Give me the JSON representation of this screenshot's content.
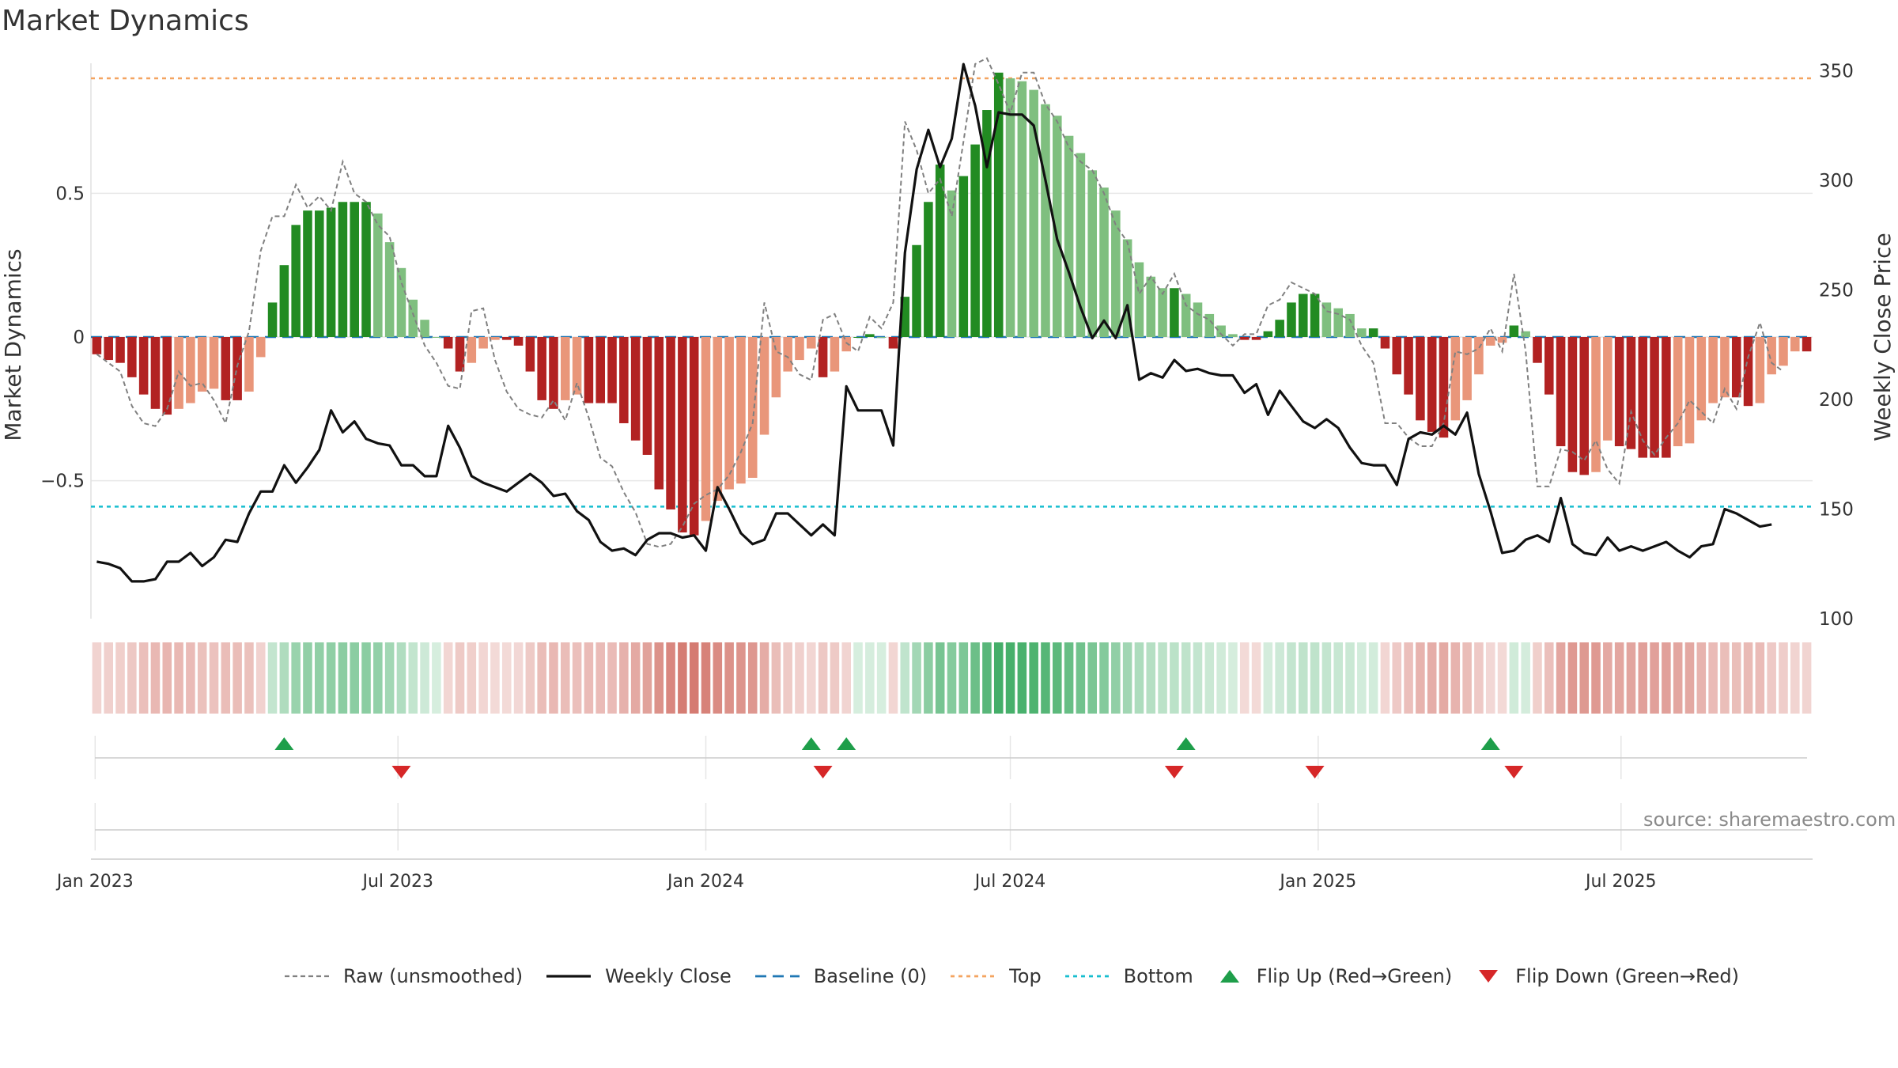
{
  "title": "Market Dynamics",
  "source": "source: sharemaestro.com",
  "colors": {
    "green_strong": "#228b22",
    "green_light": "#7fbf7f",
    "red_strong": "#b22222",
    "red_light": "#e9967a",
    "close": "#111111",
    "raw": "#808080",
    "baseline": "#1f77b4",
    "top": "#f4a460",
    "bottom": "#17becf",
    "flip_up": "#1e9e4a",
    "flip_down": "#d62728"
  },
  "legend": [
    {
      "key": "raw",
      "label": "Raw (unsmoothed)"
    },
    {
      "key": "close",
      "label": "Weekly Close"
    },
    {
      "key": "baseline",
      "label": "Baseline (0)"
    },
    {
      "key": "top",
      "label": "Top"
    },
    {
      "key": "bottom",
      "label": "Bottom"
    },
    {
      "key": "flip_up",
      "label": "Flip Up (Red→Green)"
    },
    {
      "key": "flip_down",
      "label": "Flip Down (Green→Red)"
    }
  ],
  "chart_data": {
    "type": "bar",
    "title": "Market Dynamics",
    "ylabel": "Market Dynamics",
    "ylabel_right": "Weekly Close Price",
    "x_start": "2023-01-02",
    "x_interval": "weekly",
    "x_ticks": [
      "Jan 2023",
      "Jul 2023",
      "Jan 2024",
      "Jul 2024",
      "Jan 2025",
      "Jul 2025"
    ],
    "x_tick_dates": [
      "2023-01-01",
      "2023-07-01",
      "2024-01-01",
      "2024-07-01",
      "2025-01-01",
      "2025-07-01"
    ],
    "y_ticks": [
      -0.5,
      0,
      0.5
    ],
    "y_tick_labels": [
      "−0.5",
      "0",
      "0.5"
    ],
    "ylim": [
      -0.98,
      0.98
    ],
    "y2_ticks": [
      100,
      150,
      200,
      250,
      300,
      350
    ],
    "y2lim": [
      100,
      357
    ],
    "top_line": 0.9,
    "bottom_line": -0.59,
    "baseline": 0,
    "grid": true,
    "legend_position": "bottom",
    "series": [
      {
        "name": "Market Dynamics",
        "values": [
          -0.06,
          -0.08,
          -0.09,
          -0.14,
          -0.2,
          -0.25,
          -0.27,
          -0.25,
          -0.23,
          -0.19,
          -0.18,
          -0.22,
          -0.22,
          -0.19,
          -0.07,
          0.12,
          0.25,
          0.39,
          0.44,
          0.44,
          0.45,
          0.47,
          0.47,
          0.47,
          0.43,
          0.33,
          0.24,
          0.13,
          0.06,
          0,
          -0.04,
          -0.12,
          -0.09,
          -0.04,
          -0.01,
          -0.01,
          -0.03,
          -0.12,
          -0.22,
          -0.25,
          -0.22,
          -0.2,
          -0.23,
          -0.23,
          -0.23,
          -0.3,
          -0.36,
          -0.41,
          -0.53,
          -0.6,
          -0.68,
          -0.69,
          -0.64,
          -0.57,
          -0.53,
          -0.51,
          -0.49,
          -0.34,
          -0.21,
          -0.12,
          -0.08,
          -0.04,
          -0.14,
          -0.12,
          -0.05,
          0,
          0.01,
          0,
          -0.04,
          0.14,
          0.32,
          0.47,
          0.6,
          0.51,
          0.56,
          0.67,
          0.79,
          0.92,
          0.9,
          0.89,
          0.86,
          0.81,
          0.77,
          0.7,
          0.64,
          0.58,
          0.52,
          0.44,
          0.34,
          0.26,
          0.21,
          0.17,
          0.17,
          0.15,
          0.12,
          0.08,
          0.04,
          0.01,
          -0.01,
          -0.01,
          0.02,
          0.06,
          0.12,
          0.15,
          0.15,
          0.12,
          0.1,
          0.08,
          0.03,
          0.03,
          -0.04,
          -0.13,
          -0.2,
          -0.29,
          -0.33,
          -0.35,
          -0.29,
          -0.22,
          -0.13,
          -0.03,
          -0.02,
          0.04,
          0.02,
          -0.09,
          -0.2,
          -0.38,
          -0.47,
          -0.48,
          -0.47,
          -0.36,
          -0.38,
          -0.39,
          -0.42,
          -0.42,
          -0.42,
          -0.38,
          -0.37,
          -0.29,
          -0.23,
          -0.21,
          -0.21,
          -0.24,
          -0.23,
          -0.13,
          -0.1,
          -0.05,
          -0.05
        ]
      },
      {
        "name": "Raw (unsmoothed)",
        "values": [
          -0.06,
          -0.09,
          -0.12,
          -0.24,
          -0.3,
          -0.31,
          -0.25,
          -0.12,
          -0.17,
          -0.16,
          -0.22,
          -0.3,
          -0.1,
          0.02,
          0.3,
          0.42,
          0.42,
          0.53,
          0.45,
          0.49,
          0.44,
          0.61,
          0.5,
          0.47,
          0.39,
          0.35,
          0.19,
          0.08,
          -0.03,
          -0.09,
          -0.17,
          -0.18,
          0.09,
          0.1,
          -0.08,
          -0.19,
          -0.25,
          -0.27,
          -0.28,
          -0.22,
          -0.29,
          -0.16,
          -0.28,
          -0.42,
          -0.45,
          -0.54,
          -0.61,
          -0.72,
          -0.73,
          -0.72,
          -0.66,
          -0.58,
          -0.55,
          -0.53,
          -0.48,
          -0.4,
          -0.3,
          0.12,
          -0.05,
          -0.07,
          -0.13,
          -0.15,
          0.06,
          0.08,
          -0.02,
          -0.05,
          0.07,
          0.03,
          0.12,
          0.75,
          0.65,
          0.5,
          0.55,
          0.42,
          0.68,
          0.95,
          0.97,
          0.88,
          0.78,
          0.92,
          0.92,
          0.81,
          0.75,
          0.66,
          0.61,
          0.58,
          0.5,
          0.39,
          0.33,
          0.15,
          0.21,
          0.15,
          0.22,
          0.11,
          0.08,
          0.06,
          0.01,
          -0.03,
          0.01,
          0.01,
          0.11,
          0.13,
          0.19,
          0.17,
          0.15,
          0.09,
          0.08,
          0.06,
          -0.03,
          -0.09,
          -0.3,
          -0.3,
          -0.35,
          -0.38,
          -0.38,
          -0.3,
          -0.05,
          -0.06,
          -0.04,
          0.03,
          -0.05,
          0.22,
          -0.05,
          -0.52,
          -0.52,
          -0.39,
          -0.4,
          -0.43,
          -0.36,
          -0.46,
          -0.51,
          -0.26,
          -0.36,
          -0.41,
          -0.35,
          -0.3,
          -0.22,
          -0.26,
          -0.3,
          -0.18,
          -0.25,
          -0.07,
          0.05,
          -0.09,
          -0.12
        ]
      },
      {
        "name": "Weekly Close",
        "values": [
          126,
          125,
          123,
          117,
          117,
          118,
          126,
          126,
          130,
          124,
          128,
          136,
          135,
          148,
          158,
          158,
          170,
          162,
          169,
          177,
          195,
          185,
          190,
          182,
          180,
          179,
          170,
          170,
          165,
          165,
          188,
          178,
          165,
          162,
          160,
          158,
          162,
          166,
          162,
          156,
          157,
          149,
          145,
          135,
          131,
          132,
          129,
          136,
          139,
          139,
          137,
          138,
          131,
          160,
          150,
          139,
          134,
          136,
          148,
          148,
          143,
          138,
          143,
          138,
          206,
          195,
          195,
          195,
          179,
          267,
          305,
          323,
          306,
          319,
          353,
          334,
          306,
          331,
          330,
          330,
          325,
          300,
          273,
          258,
          242,
          228,
          236,
          228,
          243,
          209,
          212,
          210,
          218,
          213,
          214,
          212,
          211,
          211,
          203,
          207,
          193,
          204,
          197,
          190,
          187,
          191,
          187,
          178,
          171,
          170,
          170,
          161,
          182,
          185,
          184,
          188,
          184,
          194,
          166,
          149,
          130,
          131,
          136,
          138,
          135,
          155,
          134,
          130,
          129,
          137,
          131,
          133,
          131,
          133,
          135,
          131,
          128,
          133,
          134,
          150,
          148,
          145,
          142,
          143
        ]
      }
    ],
    "flip_up_dates": [
      "2023-04-24",
      "2024-03-04",
      "2024-03-25",
      "2024-10-14",
      "2025-04-14"
    ],
    "flip_down_dates": [
      "2023-07-03",
      "2024-03-11",
      "2024-10-07",
      "2024-12-30",
      "2025-04-28"
    ]
  }
}
